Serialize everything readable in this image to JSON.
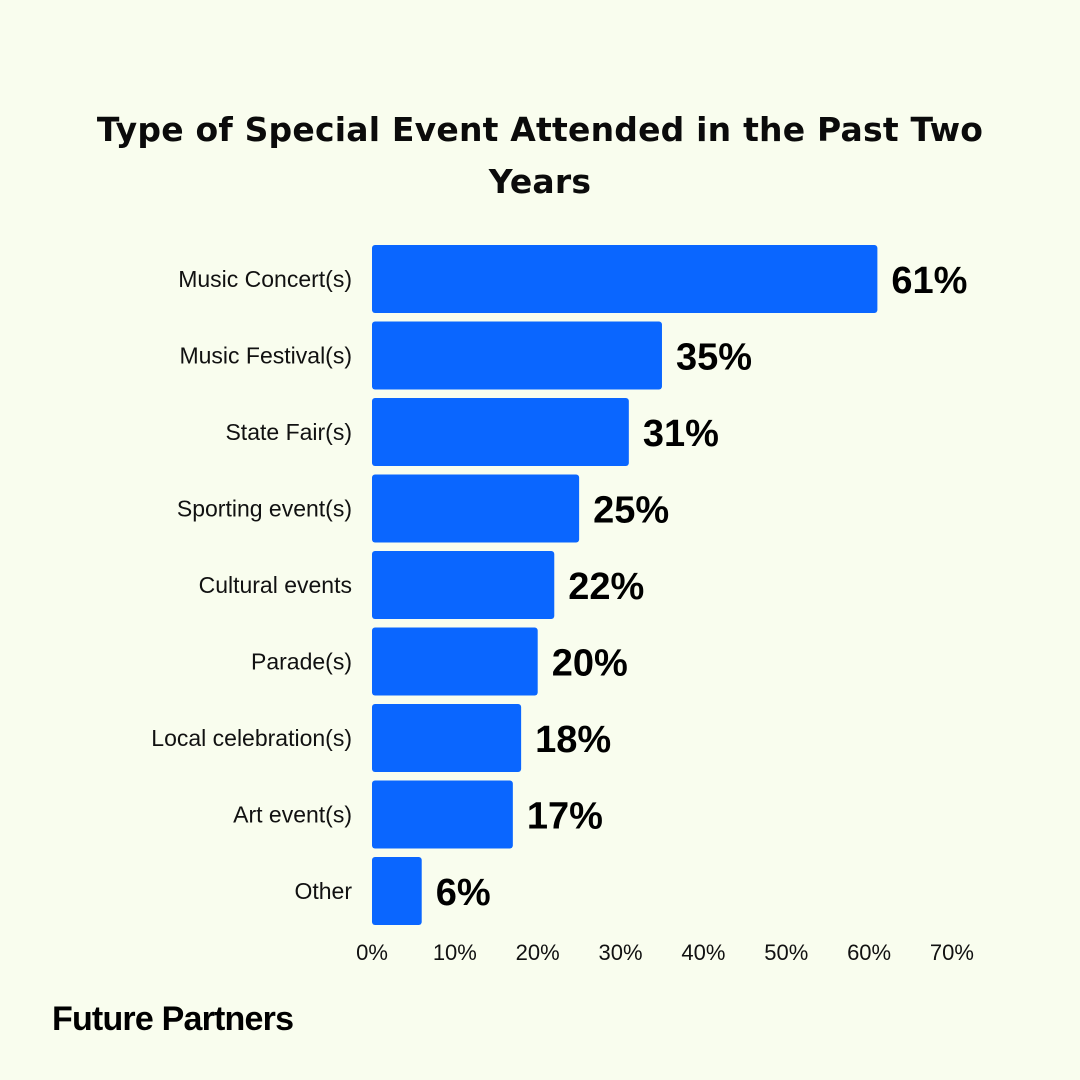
{
  "brand": {
    "name": "Future Partners"
  },
  "colors": {
    "background": "#f9fdee",
    "bar": "#0a66ff",
    "text": "#0b0b0b"
  },
  "chart_data": {
    "type": "bar",
    "orientation": "horizontal",
    "title": "Type of Special Event Attended in the Past Two Years",
    "xlabel": "",
    "ylabel": "",
    "categories": [
      "Music Concert(s)",
      "Music Festival(s)",
      "State Fair(s)",
      "Sporting event(s)",
      "Cultural events",
      "Parade(s)",
      "Local celebration(s)",
      "Art event(s)",
      "Other"
    ],
    "values": [
      61,
      35,
      31,
      25,
      22,
      20,
      18,
      17,
      6
    ],
    "value_labels": [
      "61%",
      "35%",
      "31%",
      "25%",
      "22%",
      "20%",
      "18%",
      "17%",
      "6%"
    ],
    "xlim": [
      0,
      70
    ],
    "ticks": [
      0,
      10,
      20,
      30,
      40,
      50,
      60,
      70
    ],
    "tick_labels": [
      "0%",
      "10%",
      "20%",
      "30%",
      "40%",
      "50%",
      "60%",
      "70%"
    ],
    "grid": false,
    "legend": "none"
  }
}
